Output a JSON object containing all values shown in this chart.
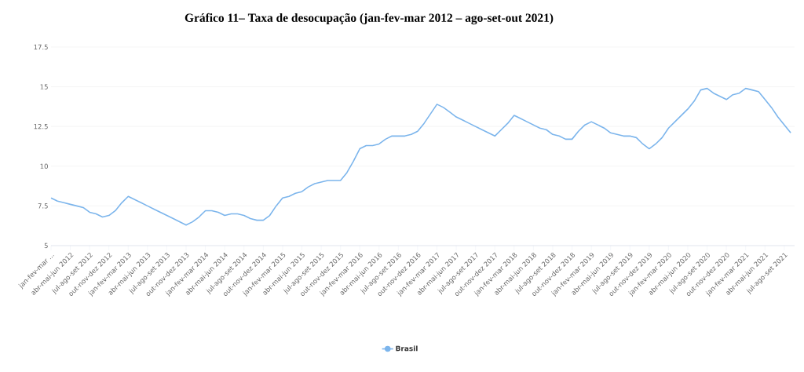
{
  "chart_data": {
    "type": "line",
    "title": "Gráfico 11– Taxa de desocupação (jan-fev-mar 2012 – ago-set-out 2021)",
    "categories": [
      "jan-fev-mar ...",
      null,
      null,
      "abr-mai-jun 2012",
      null,
      null,
      "jul-ago-set 2012",
      null,
      null,
      "out-nov-dez 2012",
      null,
      null,
      "jan-fev-mar 2013",
      null,
      null,
      "abr-mai-jun 2013",
      null,
      null,
      "jul-ago-set 2013",
      null,
      null,
      "out-nov-dez 2013",
      null,
      null,
      "jan-fev-mar 2014",
      null,
      null,
      "abr-mai-jun 2014",
      null,
      null,
      "jul-ago-set 2014",
      null,
      null,
      "out-nov-dez 2014",
      null,
      null,
      "jan-fev-mar 2015",
      null,
      null,
      "abr-mai-jun 2015",
      null,
      null,
      "jul-ago-set 2015",
      null,
      null,
      "out-nov-dez 2015",
      null,
      null,
      "jan-fev-mar 2016",
      null,
      null,
      "abr-mai-jun 2016",
      null,
      null,
      "jul-ago-set 2016",
      null,
      null,
      "out-nov-dez 2016",
      null,
      null,
      "jan-fev-mar 2017",
      null,
      null,
      "abr-mai-jun 2017",
      null,
      null,
      "jul-ago-set 2017",
      null,
      null,
      "out-nov-dez 2017",
      null,
      null,
      "jan-fev-mar 2018",
      null,
      null,
      "abr-mai-jun 2018",
      null,
      null,
      "jul-ago-set 2018",
      null,
      null,
      "out-nov-dez 2018",
      null,
      null,
      "jan-fev-mar 2019",
      null,
      null,
      "abr-mai-jun 2019",
      null,
      null,
      "jul-ago-set 2019",
      null,
      null,
      "out-nov-dez 2019",
      null,
      null,
      "jan-fev-mar 2020",
      null,
      null,
      "abr-mai-jun 2020",
      null,
      null,
      "jul-ago-set 2020",
      null,
      null,
      "out-nov-dez 2020",
      null,
      null,
      "jan-fev-mar 2021",
      null,
      null,
      "abr-mai-jun 2021",
      null,
      null,
      "jul-ago-set 2021",
      null
    ],
    "series": [
      {
        "name": "Brasil",
        "color": "#7cb5ec",
        "values": [
          8.0,
          7.8,
          7.7,
          7.6,
          7.5,
          7.4,
          7.1,
          7.0,
          6.8,
          6.9,
          7.2,
          7.7,
          8.1,
          7.9,
          7.7,
          7.5,
          7.3,
          7.1,
          6.9,
          6.7,
          6.5,
          6.3,
          6.5,
          6.8,
          7.2,
          7.2,
          7.1,
          6.9,
          7.0,
          7.0,
          6.9,
          6.7,
          6.6,
          6.6,
          6.9,
          7.5,
          8.0,
          8.1,
          8.3,
          8.4,
          8.7,
          8.9,
          9.0,
          9.1,
          9.1,
          9.1,
          9.6,
          10.3,
          11.1,
          11.3,
          11.3,
          11.4,
          11.7,
          11.9,
          11.9,
          11.9,
          12.0,
          12.2,
          12.7,
          13.3,
          13.9,
          13.7,
          13.4,
          13.1,
          12.9,
          12.7,
          12.5,
          12.3,
          12.1,
          11.9,
          12.3,
          12.7,
          13.2,
          13.0,
          12.8,
          12.6,
          12.4,
          12.3,
          12.0,
          11.9,
          11.7,
          11.7,
          12.2,
          12.6,
          12.8,
          12.6,
          12.4,
          12.1,
          12.0,
          11.9,
          11.9,
          11.8,
          11.4,
          11.1,
          11.4,
          11.8,
          12.4,
          12.8,
          13.2,
          13.6,
          14.1,
          14.8,
          14.9,
          14.6,
          14.4,
          14.2,
          14.5,
          14.6,
          14.9,
          14.8,
          14.7,
          14.2,
          13.7,
          13.1,
          12.6,
          12.1
        ]
      }
    ],
    "ylim": [
      5,
      17.5
    ],
    "yticks": [
      5,
      7.5,
      10,
      12.5,
      15,
      17.5
    ],
    "grid": "y",
    "legend": "bottom"
  }
}
